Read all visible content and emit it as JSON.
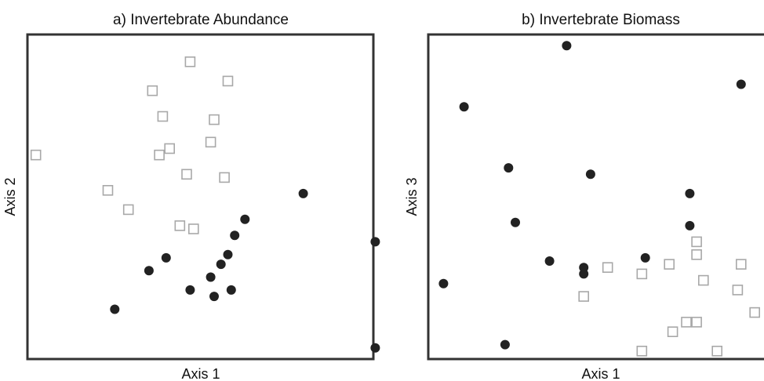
{
  "colors": {
    "filled": "#222222",
    "open_stroke": "#a8a8a8",
    "frame": "#333333"
  },
  "chart_data": [
    {
      "type": "scatter",
      "title": "a) Invertebrate Abundance",
      "xlabel": "Axis 1",
      "ylabel": "Axis 2",
      "xlim": [
        0,
        1
      ],
      "ylim": [
        0,
        1
      ],
      "grid": false,
      "ticks": false,
      "series": [
        {
          "marker": "open-square",
          "points": [
            [
              0.02,
              0.63
            ],
            [
              0.23,
              0.52
            ],
            [
              0.29,
              0.46
            ],
            [
              0.36,
              0.83
            ],
            [
              0.38,
              0.63
            ],
            [
              0.39,
              0.75
            ],
            [
              0.41,
              0.65
            ],
            [
              0.44,
              0.41
            ],
            [
              0.46,
              0.57
            ],
            [
              0.47,
              0.92
            ],
            [
              0.48,
              0.4
            ],
            [
              0.53,
              0.67
            ],
            [
              0.54,
              0.74
            ],
            [
              0.57,
              0.56
            ],
            [
              0.58,
              0.86
            ]
          ]
        },
        {
          "marker": "filled-circle",
          "points": [
            [
              0.25,
              0.15
            ],
            [
              0.35,
              0.27
            ],
            [
              0.4,
              0.31
            ],
            [
              0.47,
              0.21
            ],
            [
              0.54,
              0.19
            ],
            [
              0.53,
              0.25
            ],
            [
              0.56,
              0.29
            ],
            [
              0.58,
              0.32
            ],
            [
              0.59,
              0.21
            ],
            [
              0.6,
              0.38
            ],
            [
              0.63,
              0.43
            ],
            [
              0.8,
              0.51
            ],
            [
              1.01,
              0.36
            ],
            [
              1.01,
              0.03
            ]
          ]
        }
      ]
    },
    {
      "type": "scatter",
      "title": "b) Invertebrate Biomass",
      "xlabel": "Axis 1",
      "ylabel": "Axis 3",
      "xlim": [
        0,
        1
      ],
      "ylim": [
        0,
        1
      ],
      "grid": false,
      "ticks": false,
      "series": [
        {
          "marker": "open-square",
          "points": [
            [
              0.45,
              0.19
            ],
            [
              0.52,
              0.28
            ],
            [
              0.62,
              0.26
            ],
            [
              0.62,
              0.02
            ],
            [
              0.7,
              0.29
            ],
            [
              0.71,
              0.08
            ],
            [
              0.75,
              0.11
            ],
            [
              0.78,
              0.11
            ],
            [
              0.78,
              0.32
            ],
            [
              0.78,
              0.36
            ],
            [
              0.8,
              0.24
            ],
            [
              0.84,
              0.02
            ],
            [
              0.9,
              0.21
            ],
            [
              0.91,
              0.29
            ],
            [
              0.95,
              0.14
            ]
          ]
        },
        {
          "marker": "filled-circle",
          "points": [
            [
              0.04,
              0.23
            ],
            [
              0.1,
              0.78
            ],
            [
              0.22,
              0.04
            ],
            [
              0.23,
              0.59
            ],
            [
              0.25,
              0.42
            ],
            [
              0.35,
              0.3
            ],
            [
              0.4,
              0.97
            ],
            [
              0.45,
              0.26
            ],
            [
              0.45,
              0.28
            ],
            [
              0.47,
              0.57
            ],
            [
              0.63,
              0.31
            ],
            [
              0.76,
              0.51
            ],
            [
              0.76,
              0.41
            ],
            [
              0.91,
              0.85
            ]
          ]
        }
      ]
    }
  ]
}
